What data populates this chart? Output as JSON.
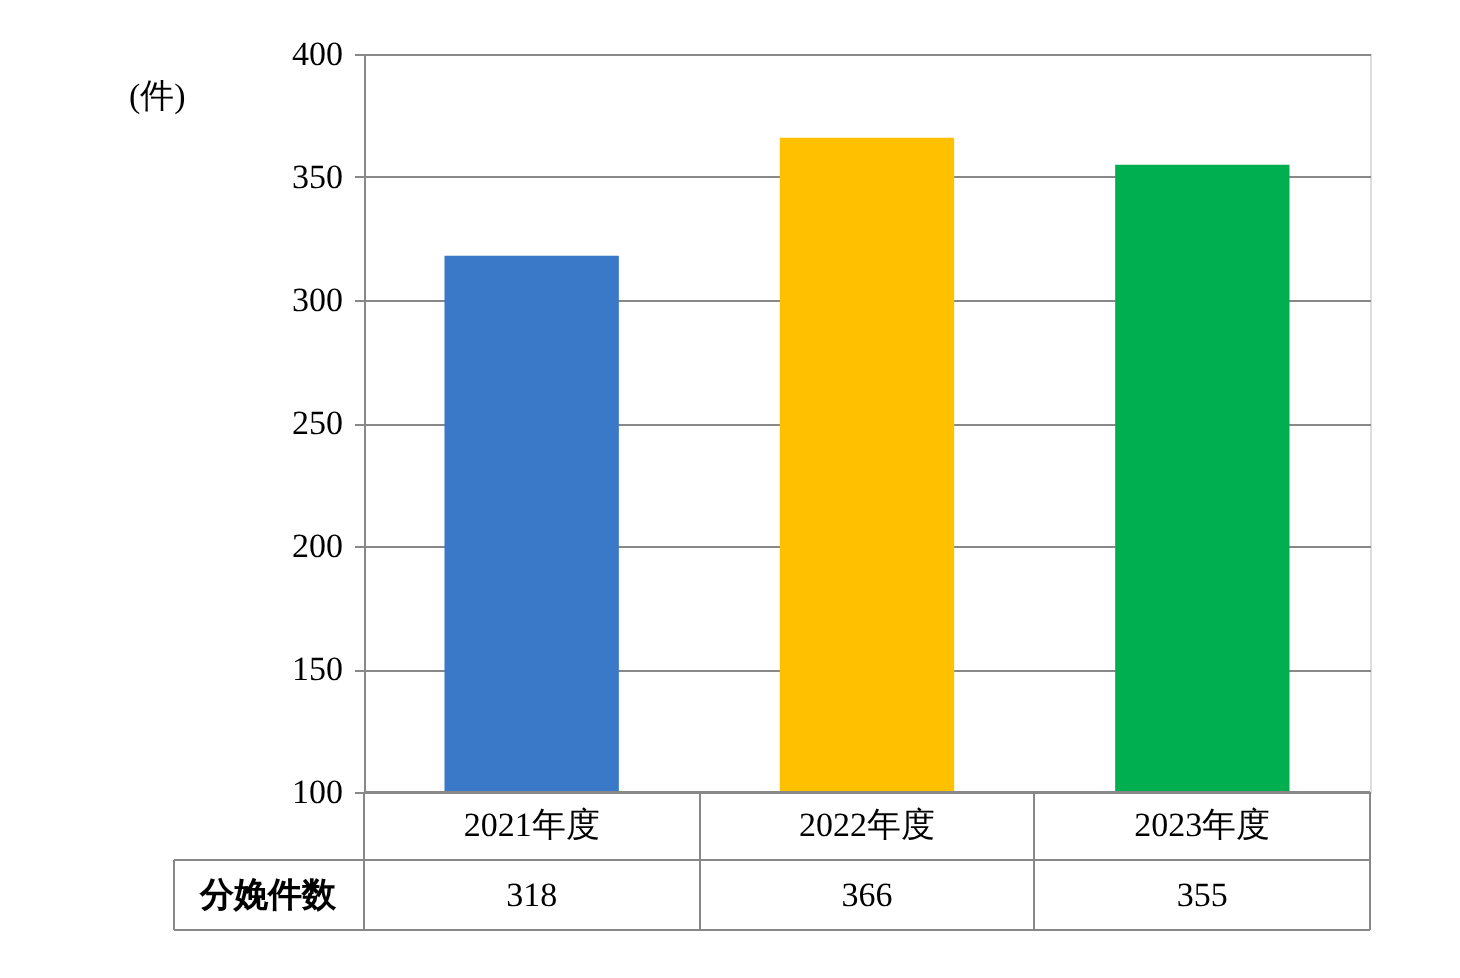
{
  "chart_data": {
    "type": "bar",
    "ylabel": "(件)",
    "categories": [
      "2021年度",
      "2022年度",
      "2023年度"
    ],
    "series": [
      {
        "name": "分娩件数",
        "colors": [
          "#3a78c8",
          "#ffc000",
          "#00b050"
        ],
        "values": [
          318,
          366,
          355
        ]
      }
    ],
    "ylim": [
      100,
      400
    ],
    "yticks": [
      100,
      150,
      200,
      250,
      300,
      350,
      400
    ],
    "grid": "y",
    "data_labels": true
  }
}
